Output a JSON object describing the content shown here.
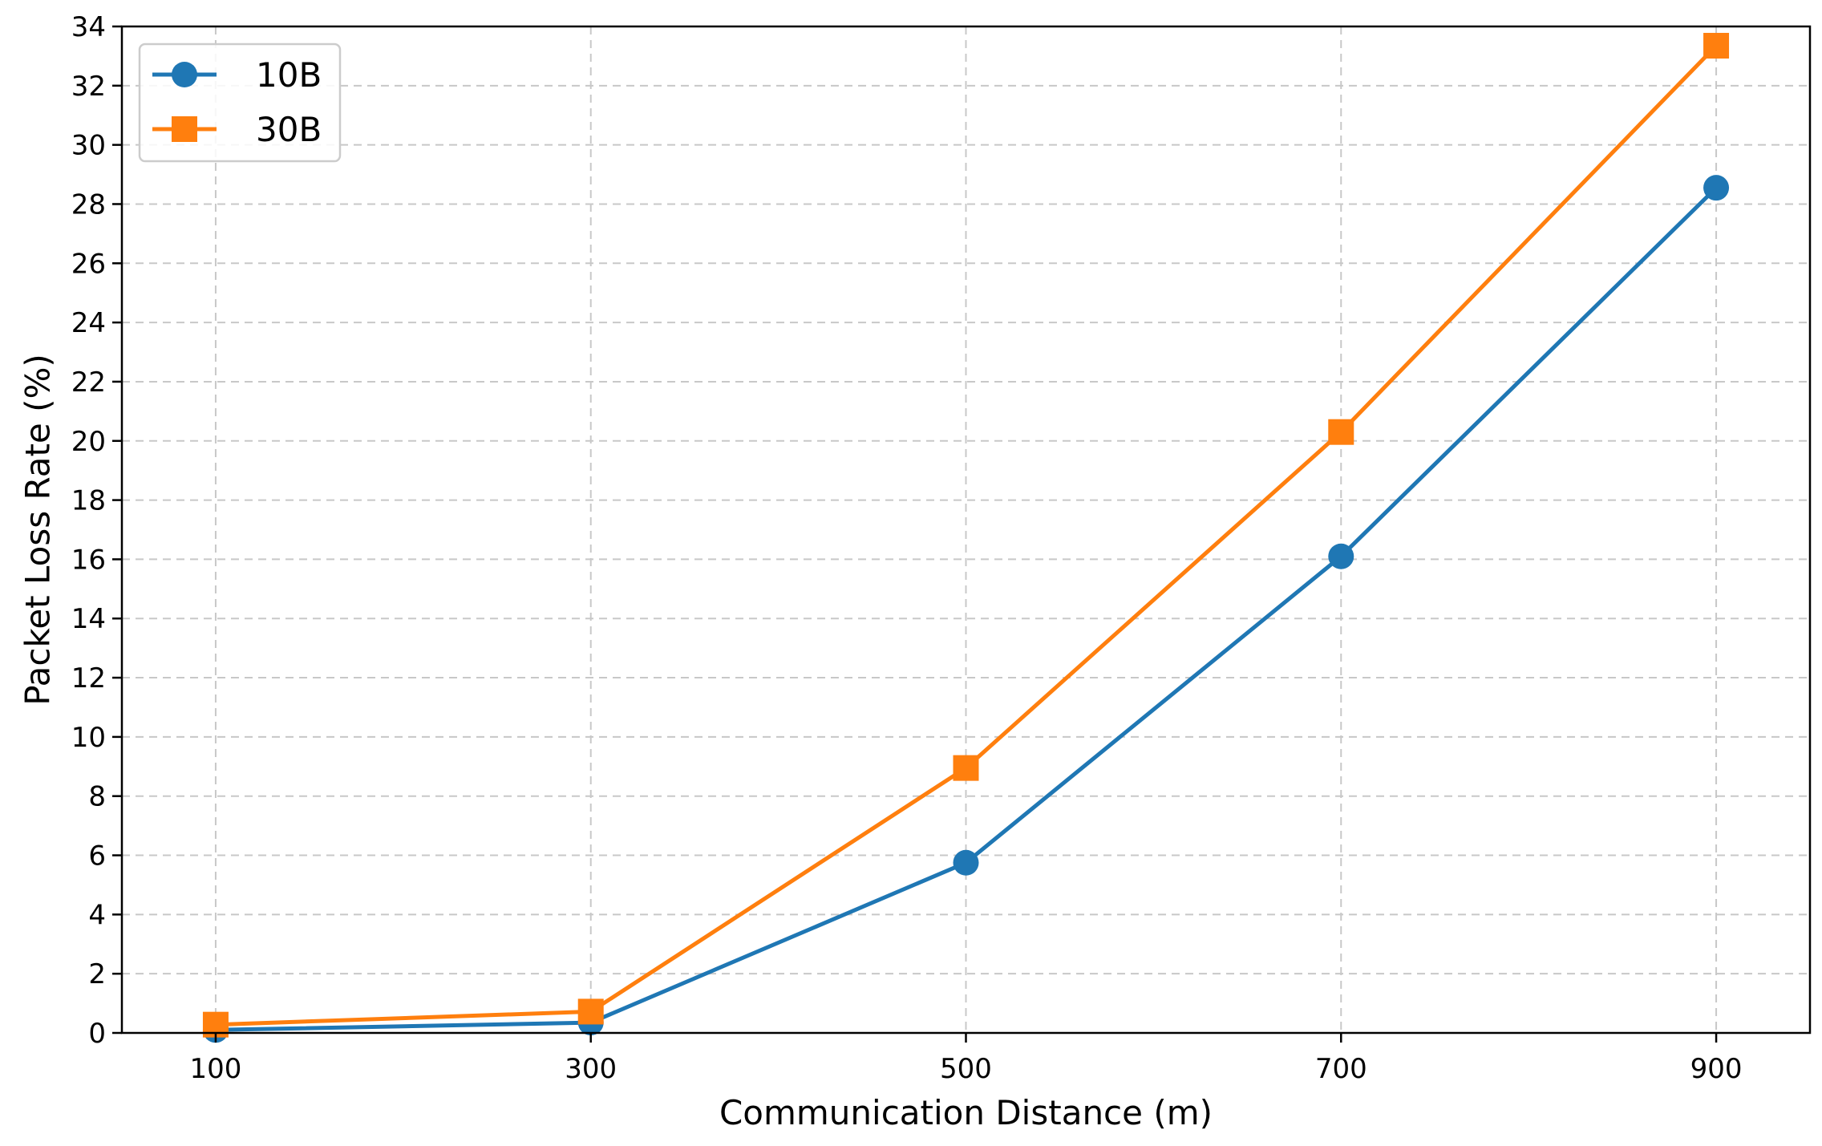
{
  "chart_data": {
    "type": "line",
    "title": "",
    "xlabel": "Communication Distance (m)",
    "ylabel": "Packet Loss Rate (%)",
    "x": [
      100,
      300,
      500,
      700,
      900
    ],
    "x_tick_labels": [
      "100",
      "300",
      "500",
      "700",
      "900"
    ],
    "xlim": [
      50,
      950
    ],
    "ylim": [
      0,
      34
    ],
    "y_ticks": [
      0,
      2,
      4,
      6,
      8,
      10,
      12,
      14,
      16,
      18,
      20,
      22,
      24,
      26,
      28,
      30,
      32,
      34
    ],
    "y_tick_labels": [
      "0",
      "2",
      "4",
      "6",
      "8",
      "10",
      "12",
      "14",
      "16",
      "18",
      "20",
      "22",
      "24",
      "26",
      "28",
      "30",
      "32",
      "34"
    ],
    "grid": true,
    "legend_position": "top-left",
    "series": [
      {
        "name": "10B",
        "values": [
          0.1,
          0.35,
          5.75,
          16.1,
          28.55
        ],
        "color": "#1f77b4",
        "marker": "circle"
      },
      {
        "name": "30B",
        "values": [
          0.28,
          0.72,
          8.95,
          20.3,
          33.35
        ],
        "color": "#ff7f0e",
        "marker": "square"
      }
    ]
  }
}
